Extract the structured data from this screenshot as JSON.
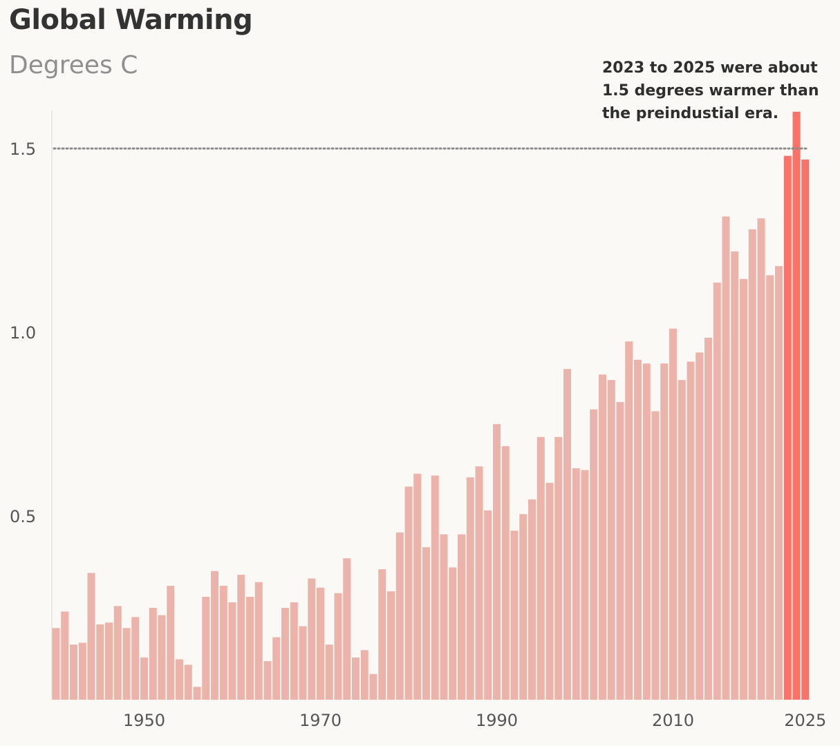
{
  "chart_data": {
    "type": "bar",
    "title": "Global Warming",
    "subtitle": "Degrees C",
    "annotation": [
      "2023 to 2025 were about",
      "1.5 degrees warmer than",
      "the preindustial era."
    ],
    "xlabel": "",
    "ylabel": "",
    "ylim": [
      0,
      1.6
    ],
    "y_ticks": [
      "0.5",
      "1.0",
      "1.5"
    ],
    "x_ticks": [
      "1950",
      "1970",
      "1990",
      "2010",
      "2025"
    ],
    "reference_line": {
      "value": 1.5,
      "style": "dotted"
    },
    "grid": false,
    "colors": {
      "base": "#ebb3aa",
      "highlight": "#fa7268",
      "reference": "#8a8a8a",
      "background": "#fbf9f5"
    },
    "highlight_years": [
      2023,
      2024,
      2025
    ],
    "categories": [
      1940,
      1941,
      1942,
      1943,
      1944,
      1945,
      1946,
      1947,
      1948,
      1949,
      1950,
      1951,
      1952,
      1953,
      1954,
      1955,
      1956,
      1957,
      1958,
      1959,
      1960,
      1961,
      1962,
      1963,
      1964,
      1965,
      1966,
      1967,
      1968,
      1969,
      1970,
      1971,
      1972,
      1973,
      1974,
      1975,
      1976,
      1977,
      1978,
      1979,
      1980,
      1981,
      1982,
      1983,
      1984,
      1985,
      1986,
      1987,
      1988,
      1989,
      1990,
      1991,
      1992,
      1993,
      1994,
      1995,
      1996,
      1997,
      1998,
      1999,
      2000,
      2001,
      2002,
      2003,
      2004,
      2005,
      2006,
      2007,
      2008,
      2009,
      2010,
      2011,
      2012,
      2013,
      2014,
      2015,
      2016,
      2017,
      2018,
      2019,
      2020,
      2021,
      2022,
      2023,
      2024,
      2025
    ],
    "values": [
      0.195,
      0.24,
      0.15,
      0.155,
      0.345,
      0.205,
      0.21,
      0.255,
      0.195,
      0.225,
      0.115,
      0.25,
      0.23,
      0.31,
      0.11,
      0.095,
      0.035,
      0.28,
      0.35,
      0.31,
      0.265,
      0.34,
      0.28,
      0.32,
      0.105,
      0.17,
      0.25,
      0.265,
      0.2,
      0.33,
      0.305,
      0.15,
      0.29,
      0.385,
      0.115,
      0.135,
      0.07,
      0.355,
      0.295,
      0.455,
      0.58,
      0.615,
      0.415,
      0.61,
      0.45,
      0.36,
      0.45,
      0.605,
      0.635,
      0.515,
      0.75,
      0.69,
      0.46,
      0.505,
      0.545,
      0.715,
      0.59,
      0.715,
      0.9,
      0.63,
      0.625,
      0.79,
      0.885,
      0.87,
      0.81,
      0.975,
      0.925,
      0.915,
      0.785,
      0.915,
      1.01,
      0.87,
      0.92,
      0.945,
      0.985,
      1.135,
      1.315,
      1.22,
      1.145,
      1.28,
      1.31,
      1.155,
      1.18,
      1.48,
      1.6,
      1.47
    ]
  }
}
